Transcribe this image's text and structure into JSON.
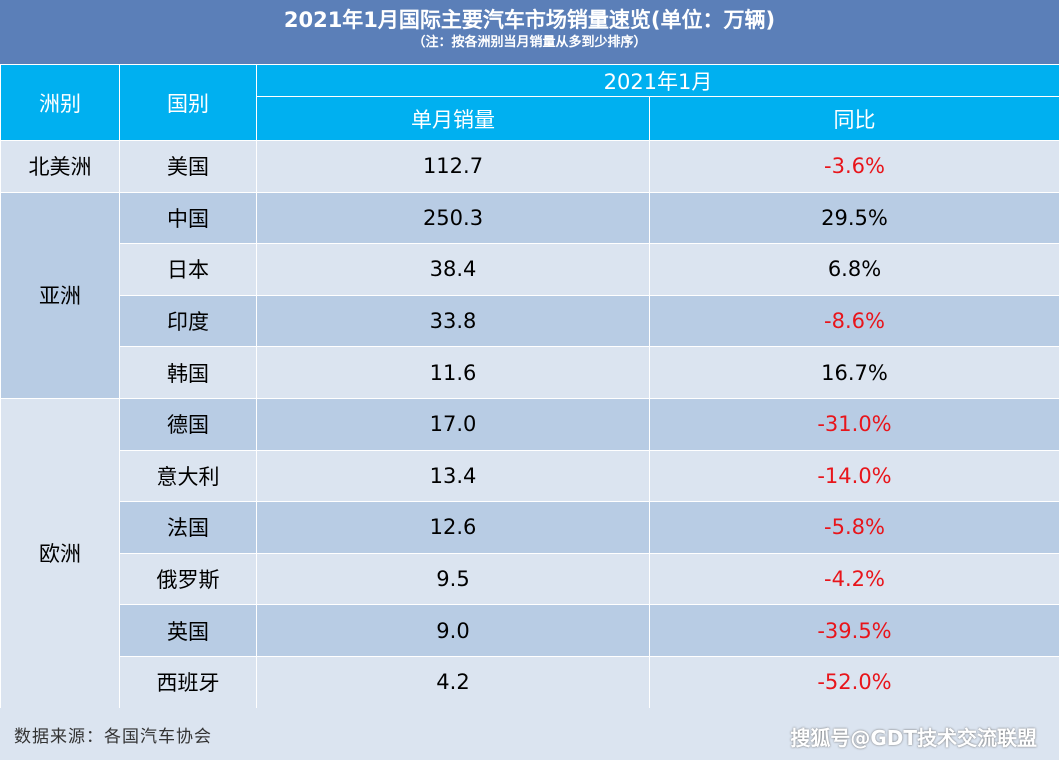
{
  "title": "2021年1月国际主要汽车市场销量速览(单位：万辆)",
  "subtitle": "（注：按各洲别当月销量从多到少排序）",
  "headers": {
    "continent": "洲别",
    "country": "国别",
    "period": "2021年1月",
    "sales": "单月销量",
    "yoy": "同比"
  },
  "continents": {
    "north_america": "北美洲",
    "asia": "亚洲",
    "europe": "欧洲"
  },
  "chart_data": {
    "type": "table",
    "title": "2021年1月国际主要汽车市场销量速览(单位：万辆)",
    "columns": [
      "洲别",
      "国别",
      "单月销量",
      "同比"
    ],
    "rows": [
      {
        "continent": "北美洲",
        "country": "美国",
        "sales": "112.7",
        "yoy": "-3.6%"
      },
      {
        "continent": "亚洲",
        "country": "中国",
        "sales": "250.3",
        "yoy": "29.5%"
      },
      {
        "continent": "亚洲",
        "country": "日本",
        "sales": "38.4",
        "yoy": "6.8%"
      },
      {
        "continent": "亚洲",
        "country": "印度",
        "sales": "33.8",
        "yoy": "-8.6%"
      },
      {
        "continent": "亚洲",
        "country": "韩国",
        "sales": "11.6",
        "yoy": "16.7%"
      },
      {
        "continent": "欧洲",
        "country": "德国",
        "sales": "17.0",
        "yoy": "-31.0%"
      },
      {
        "continent": "欧洲",
        "country": "意大利",
        "sales": "13.4",
        "yoy": "-14.0%"
      },
      {
        "continent": "欧洲",
        "country": "法国",
        "sales": "12.6",
        "yoy": "-5.8%"
      },
      {
        "continent": "欧洲",
        "country": "俄罗斯",
        "sales": "9.5",
        "yoy": "-4.2%"
      },
      {
        "continent": "欧洲",
        "country": "英国",
        "sales": "9.0",
        "yoy": "-39.5%"
      },
      {
        "continent": "欧洲",
        "country": "西班牙",
        "sales": "4.2",
        "yoy": "-52.0%"
      }
    ]
  },
  "colors": {
    "title_bg": "#5b7fb8",
    "header_bg": "#00b0f0",
    "row_light": "#dbe4f0",
    "row_dark": "#b8cce4",
    "negative": "#e8151b"
  },
  "footer": {
    "source": "数据来源：各国汽车协会",
    "watermark": "搜狐号@GDT技术交流联盟"
  }
}
